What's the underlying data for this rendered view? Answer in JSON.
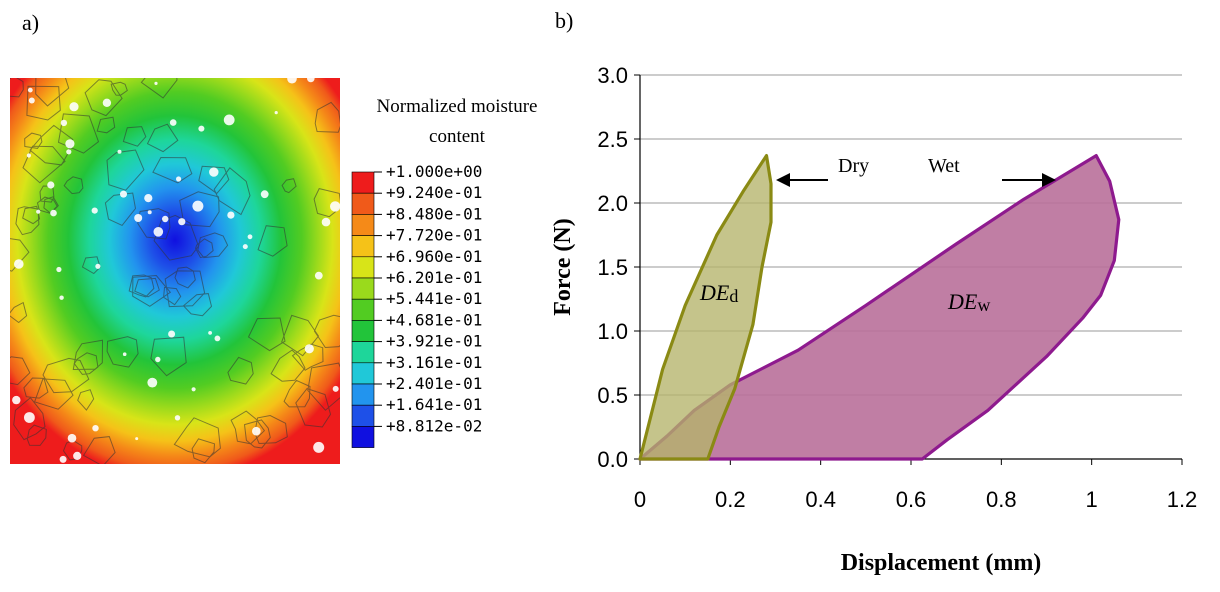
{
  "panel_a": {
    "label": "a)",
    "legend": {
      "title": "Normalized moisture content",
      "entries": [
        {
          "value": "+1.000e+00",
          "color": "#ee1c1c"
        },
        {
          "value": "+9.240e-01",
          "color": "#f05a1a"
        },
        {
          "value": "+8.480e-01",
          "color": "#f58a18"
        },
        {
          "value": "+7.720e-01",
          "color": "#f5c218"
        },
        {
          "value": "+6.960e-01",
          "color": "#d8e418"
        },
        {
          "value": "+6.201e-01",
          "color": "#9ada1c"
        },
        {
          "value": "+5.441e-01",
          "color": "#52cc22"
        },
        {
          "value": "+4.681e-01",
          "color": "#22c43a"
        },
        {
          "value": "+3.921e-01",
          "color": "#1ed69a"
        },
        {
          "value": "+3.161e-01",
          "color": "#20c8d8"
        },
        {
          "value": "+2.401e-01",
          "color": "#2294ee"
        },
        {
          "value": "+1.641e-01",
          "color": "#1e50e8"
        },
        {
          "value": "+8.812e-02",
          "color": "#1010e0"
        }
      ]
    }
  },
  "panel_b": {
    "label": "b)"
  },
  "chart_data": {
    "type": "area",
    "xlabel": "Displacement (mm)",
    "ylabel": "Force (N)",
    "xlim": [
      0,
      1.2
    ],
    "ylim": [
      0,
      3.0
    ],
    "xticks": [
      "0",
      "0.2",
      "0.4",
      "0.6",
      "0.8",
      "1",
      "1.2"
    ],
    "yticks": [
      "0.0",
      "0.5",
      "1.0",
      "1.5",
      "2.0",
      "2.5",
      "3.0"
    ],
    "grid": "horizontal",
    "series": [
      {
        "name": "Dry",
        "stroke": "#8a8a14",
        "fill": "#b5b36a",
        "points": [
          [
            0,
            0
          ],
          [
            0.05,
            0.7
          ],
          [
            0.1,
            1.2
          ],
          [
            0.17,
            1.75
          ],
          [
            0.23,
            2.1
          ],
          [
            0.28,
            2.37
          ],
          [
            0.29,
            2.15
          ],
          [
            0.29,
            1.85
          ],
          [
            0.27,
            1.5
          ],
          [
            0.25,
            1.05
          ],
          [
            0.21,
            0.55
          ],
          [
            0.175,
            0.25
          ],
          [
            0.15,
            0
          ]
        ]
      },
      {
        "name": "Wet",
        "stroke": "#8e1a8e",
        "fill": "#b9709a",
        "points": [
          [
            0,
            0
          ],
          [
            0.06,
            0.18
          ],
          [
            0.12,
            0.38
          ],
          [
            0.2,
            0.58
          ],
          [
            0.35,
            0.85
          ],
          [
            0.5,
            1.2
          ],
          [
            0.7,
            1.68
          ],
          [
            0.85,
            2.03
          ],
          [
            1.01,
            2.37
          ],
          [
            1.04,
            2.17
          ],
          [
            1.06,
            1.87
          ],
          [
            1.05,
            1.55
          ],
          [
            1.02,
            1.28
          ],
          [
            0.98,
            1.1
          ],
          [
            0.9,
            0.8
          ],
          [
            0.77,
            0.38
          ],
          [
            0.68,
            0.15
          ],
          [
            0.625,
            0
          ]
        ]
      }
    ],
    "annotations": [
      {
        "text": "Dry",
        "arrow": "left"
      },
      {
        "text": "Wet",
        "arrow": "right"
      },
      {
        "text": "DE",
        "subscript": "d"
      },
      {
        "text": "DE",
        "subscript": "w"
      }
    ]
  }
}
